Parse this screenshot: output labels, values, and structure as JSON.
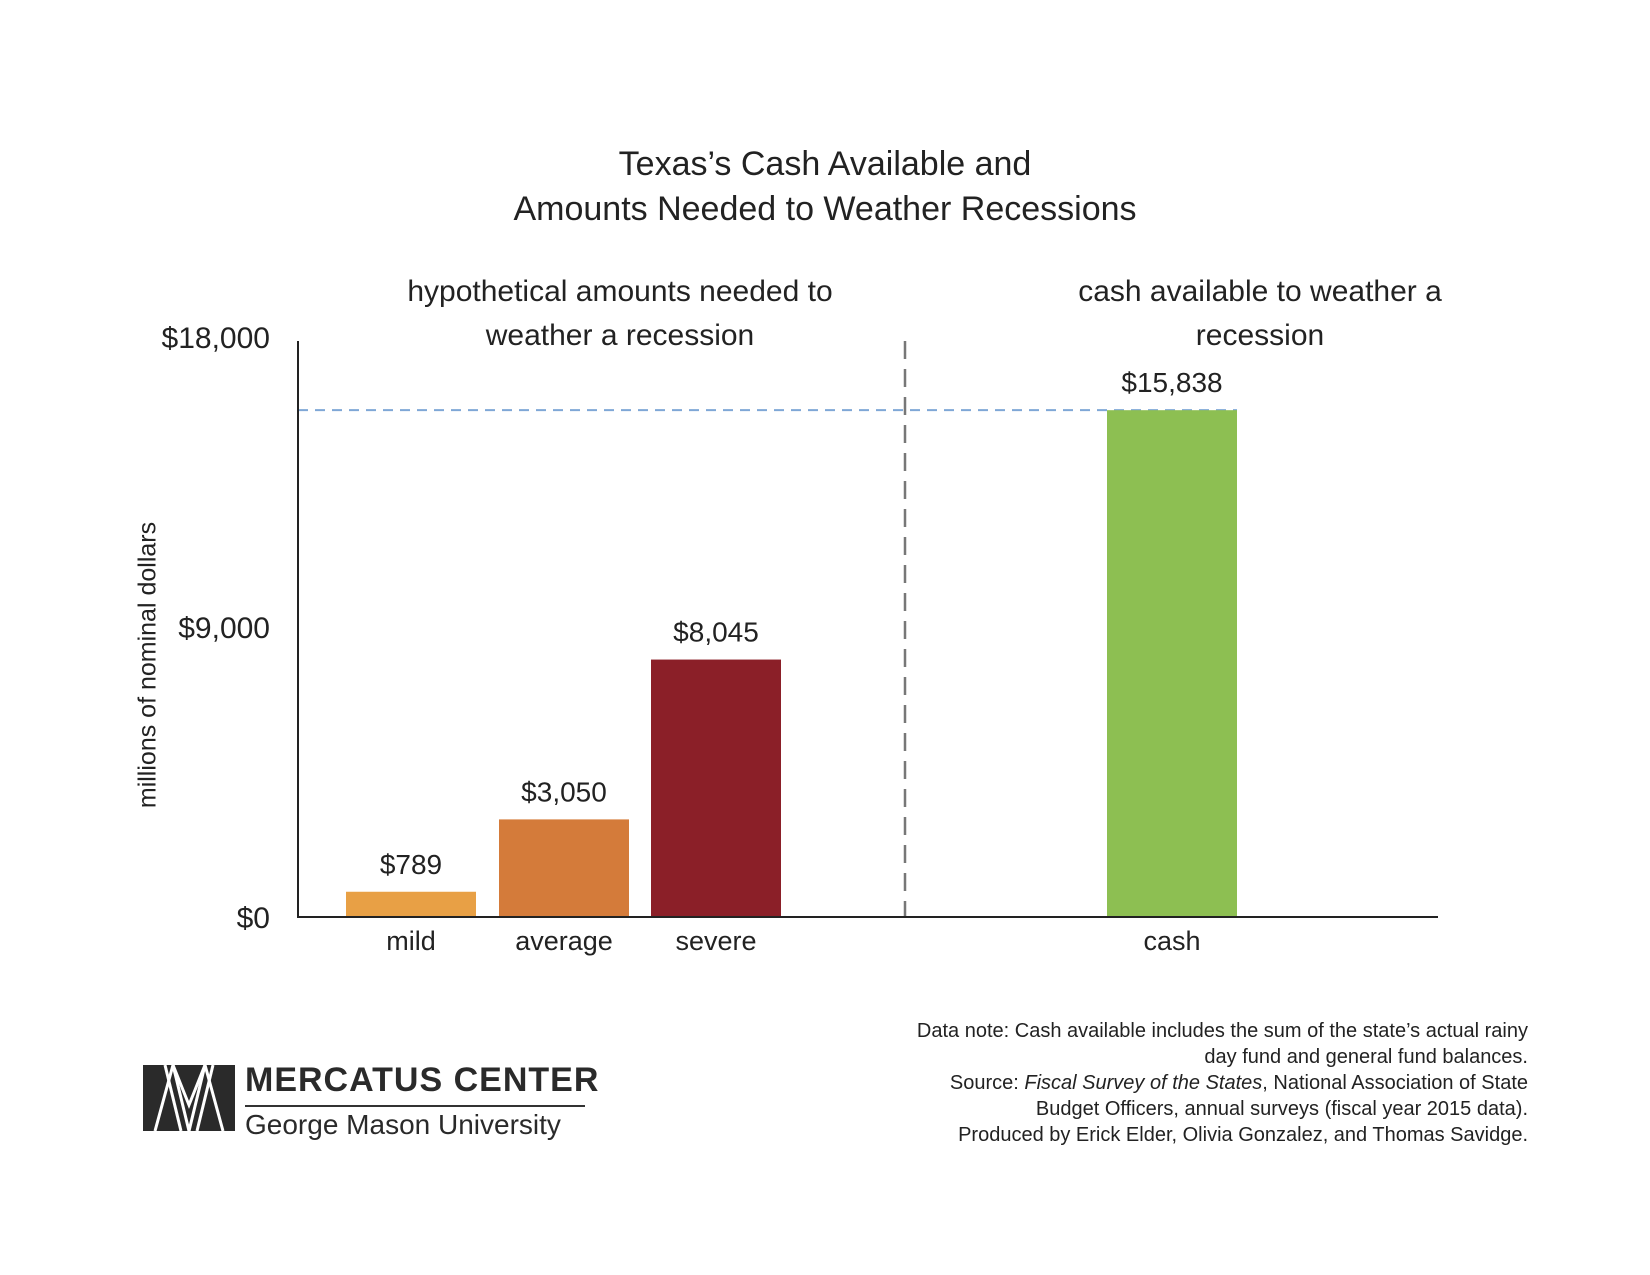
{
  "chart_data": {
    "type": "bar",
    "title": [
      "Texas’s Cash Available and",
      "Amounts Needed to Weather Recessions"
    ],
    "section_labels": {
      "left": [
        "hypothetical amounts needed to",
        "weather a recession"
      ],
      "right": [
        "cash available to weather a",
        "recession"
      ]
    },
    "ylabel": "millions of nominal dollars",
    "ylim": [
      0,
      18000
    ],
    "yticks": [
      {
        "value": 0,
        "label": "$0"
      },
      {
        "value": 9000,
        "label": "$9,000"
      },
      {
        "value": 18000,
        "label": "$18,000"
      }
    ],
    "categories": [
      "mild",
      "average",
      "severe",
      "cash"
    ],
    "values": [
      789,
      3050,
      8045,
      15838
    ],
    "value_labels": [
      "$789",
      "$3,050",
      "$8,045",
      "$15,838"
    ],
    "colors": [
      "#E8A045",
      "#D47B3A",
      "#8B1F28",
      "#8DBF52"
    ],
    "reference_line": {
      "value": 15838,
      "style": "dashed",
      "color": "#7FA7D6"
    },
    "divider_color": "#777777",
    "grid": false
  },
  "footnote": [
    "Data note: Cash available includes the sum of the state’s actual rainy",
    "day fund and general fund balances.",
    "Source: ",
    "Fiscal Survey of the States",
    ", National Association of State",
    "Budget Officers, annual surveys (fiscal year 2015 data).",
    "Produced by Erick Elder, Olivia Gonzalez, and Thomas Savidge."
  ],
  "logo": {
    "name": "MERCATUS CENTER",
    "subtitle": "George Mason University",
    "icon": "mercatus-logo-icon"
  }
}
